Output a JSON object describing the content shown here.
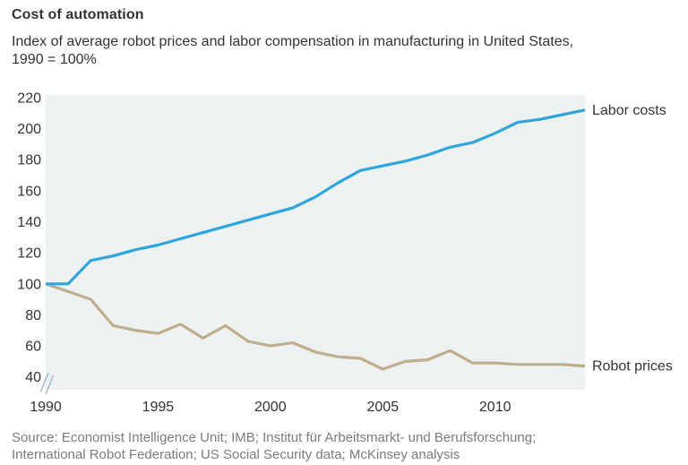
{
  "header": {
    "title": "Cost of automation",
    "subtitle_line1": "Index of average robot prices and labor compensation in manufacturing in United States,",
    "subtitle_line2": "1990 = 100%"
  },
  "colors": {
    "labor_line": "#2FA5DC",
    "robot_line": "#BFAE8C",
    "plot_background": "#EDF1F2",
    "text": "#333333",
    "source_text": "#7C7C7C",
    "axis_break": "#9DB8C8"
  },
  "chart_data": {
    "type": "line",
    "title": "Cost of automation",
    "subtitle": "Index of average robot prices and labor compensation in manufacturing in United States, 1990 = 100%",
    "x": [
      1990,
      1991,
      1992,
      1993,
      1994,
      1995,
      1996,
      1997,
      1998,
      1999,
      2000,
      2001,
      2002,
      2003,
      2004,
      2005,
      2006,
      2007,
      2008,
      2009,
      2010,
      2011,
      2012,
      2013,
      2014
    ],
    "series": [
      {
        "name": "Labor costs",
        "color": "#2FA5DC",
        "values": [
          100,
          100,
          115,
          118,
          122,
          125,
          129,
          133,
          137,
          141,
          145,
          149,
          156,
          165,
          173,
          176,
          179,
          183,
          188,
          191,
          197,
          204,
          206,
          209,
          212
        ]
      },
      {
        "name": "Robot prices",
        "color": "#BFAE8C",
        "values": [
          100,
          95,
          90,
          73,
          70,
          68,
          74,
          65,
          73,
          63,
          60,
          62,
          56,
          53,
          52,
          45,
          50,
          51,
          57,
          49,
          49,
          48,
          48,
          48,
          47
        ]
      }
    ],
    "xlabel": "",
    "ylabel": "",
    "ylim": [
      40,
      220
    ],
    "yticks": [
      220,
      200,
      180,
      160,
      140,
      120,
      100,
      80,
      60,
      40
    ],
    "xticks": [
      1990,
      1995,
      2000,
      2005,
      2010
    ],
    "y_axis_break": true,
    "grid": false,
    "legend_position": "labels-at-line-end"
  },
  "source": {
    "line1": "Source: Economist Intelligence Unit; IMB; Institut für Arbeitsmarkt- und Berufsforschung;",
    "line2": "International Robot Federation; US Social Security data; McKinsey analysis"
  }
}
